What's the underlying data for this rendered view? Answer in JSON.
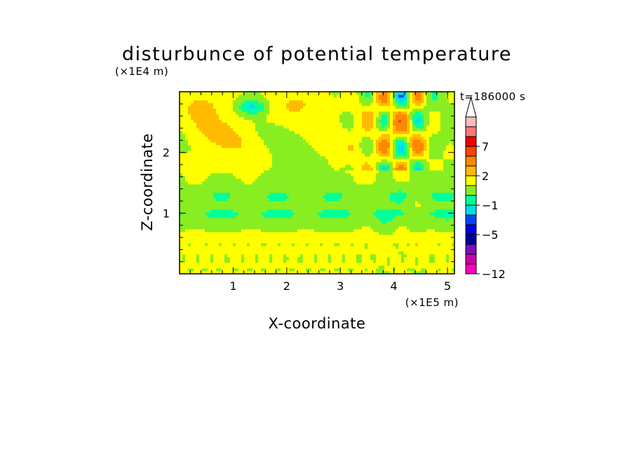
{
  "chart_data": {
    "type": "heatmap",
    "title": "disturbunce of potential temperature",
    "time_label": "t=186000 s",
    "xlabel": "X-coordinate",
    "ylabel": "Z-coordinate",
    "x_unit": "(×1E5 m)",
    "y_unit": "(×1E4 m)",
    "xlim": [
      0,
      5.13
    ],
    "ylim": [
      0,
      3.0
    ],
    "x_ticks": [
      {
        "value": 1,
        "label": "1"
      },
      {
        "value": 2,
        "label": "2"
      },
      {
        "value": 3,
        "label": "3"
      },
      {
        "value": 4,
        "label": "4"
      },
      {
        "value": 5,
        "label": "5"
      }
    ],
    "y_ticks": [
      {
        "value": 1,
        "label": "1"
      },
      {
        "value": 2,
        "label": "2"
      }
    ],
    "colorbar": {
      "levels": [
        {
          "lo": -12,
          "hi": -10,
          "color": "#ff00bb"
        },
        {
          "lo": -10,
          "hi": -8,
          "color": "#cc00aa"
        },
        {
          "lo": -8,
          "hi": -6,
          "color": "#7711bb"
        },
        {
          "lo": -6,
          "hi": -5,
          "color": "#000099"
        },
        {
          "lo": -5,
          "hi": -3,
          "color": "#0000dd"
        },
        {
          "lo": -3,
          "hi": -2,
          "color": "#0044ff"
        },
        {
          "lo": -2,
          "hi": -1,
          "color": "#00ddee"
        },
        {
          "lo": -1,
          "hi": 0,
          "color": "#00ff99"
        },
        {
          "lo": 0,
          "hi": 1,
          "color": "#88ee22"
        },
        {
          "lo": 1,
          "hi": 2,
          "color": "#ffff00"
        },
        {
          "lo": 2,
          "hi": 3,
          "color": "#ffbb00"
        },
        {
          "lo": 3,
          "hi": 5,
          "color": "#ff8800"
        },
        {
          "lo": 5,
          "hi": 7,
          "color": "#ff4400"
        },
        {
          "lo": 7,
          "hi": 9,
          "color": "#ee0000"
        },
        {
          "lo": 9,
          "hi": 11,
          "color": "#ff7777"
        },
        {
          "lo": 11,
          "hi": 13,
          "color": "#ffbbbb"
        }
      ],
      "labels": [
        {
          "value": -12,
          "label": "−12"
        },
        {
          "value": -5,
          "label": "−5"
        },
        {
          "value": -1,
          "label": "−1"
        },
        {
          "value": 2,
          "label": "2"
        },
        {
          "value": 7,
          "label": "7"
        }
      ],
      "extend": "max"
    }
  }
}
